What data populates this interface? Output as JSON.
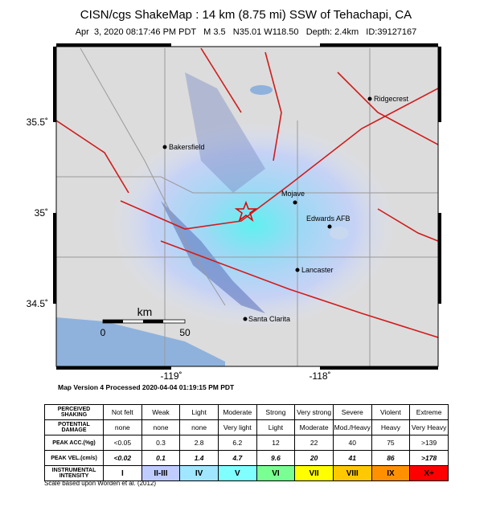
{
  "header": {
    "title": "CISN/cgs ShakeMap : 14 km (8.75 mi) SSW of Tehachapi, CA",
    "subtitle": "Apr  3, 2020 08:17:46 PM PDT   M 3.5   N35.01 W118.50   Depth: 2.4km   ID:39127167"
  },
  "map": {
    "latitude_labels": [
      "35.5˚",
      "35˚",
      "34.5˚"
    ],
    "longitude_labels": [
      "-119˚",
      "-118˚"
    ],
    "places": [
      "Ridgecrest",
      "Bakersfield",
      "Mojave",
      "Edwards AFB",
      "Lancaster",
      "Santa Clarita"
    ],
    "scale": {
      "unit": "km",
      "ticks": [
        "0",
        "50"
      ]
    }
  },
  "processed": "Map Version 4 Processed 2020-04-04 01:19:15 PM PDT",
  "legend": {
    "row_labels": [
      "PERCEIVED SHAKING",
      "POTENTIAL DAMAGE",
      "PEAK ACC.(%g)",
      "PEAK VEL.(cm/s)",
      "INSTRUMENTAL INTENSITY"
    ],
    "columns": [
      {
        "shaking": "Not felt",
        "damage": "none",
        "acc": "<0.05",
        "vel": "<0.02",
        "intensity": "I",
        "color": "#ffffff"
      },
      {
        "shaking": "Weak",
        "damage": "none",
        "acc": "0.3",
        "vel": "0.1",
        "intensity": "II-III",
        "color": "#bfccff"
      },
      {
        "shaking": "Light",
        "damage": "none",
        "acc": "2.8",
        "vel": "1.4",
        "intensity": "IV",
        "color": "#a0e6ff"
      },
      {
        "shaking": "Moderate",
        "damage": "Very light",
        "acc": "6.2",
        "vel": "4.7",
        "intensity": "V",
        "color": "#80ffff"
      },
      {
        "shaking": "Strong",
        "damage": "Light",
        "acc": "12",
        "vel": "9.6",
        "intensity": "VI",
        "color": "#7aff93"
      },
      {
        "shaking": "Very strong",
        "damage": "Moderate",
        "acc": "22",
        "vel": "20",
        "intensity": "VII",
        "color": "#ffff00"
      },
      {
        "shaking": "Severe",
        "damage": "Mod./Heavy",
        "acc": "40",
        "vel": "41",
        "intensity": "VIII",
        "color": "#ffc800"
      },
      {
        "shaking": "Violent",
        "damage": "Heavy",
        "acc": "75",
        "vel": "86",
        "intensity": "IX",
        "color": "#ff9100"
      },
      {
        "shaking": "Extreme",
        "damage": "Very Heavy",
        "acc": ">139",
        "vel": ">178",
        "intensity": "X+",
        "color": "#ff0000"
      }
    ]
  },
  "footnote": "Scale based upon Worden et al. (2012)"
}
